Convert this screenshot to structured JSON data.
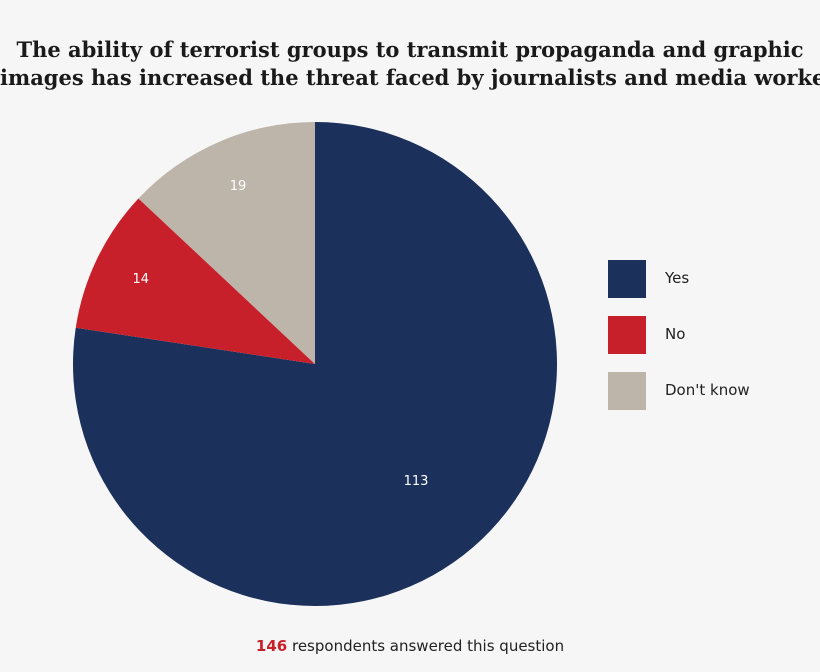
{
  "title_lines": [
    "The ability of terrorist groups to transmit propaganda and graphic",
    "images has increased the threat faced by journalists and media workers."
  ],
  "footer": {
    "count": "146",
    "text": "respondents answered this question"
  },
  "chart_data": {
    "type": "pie",
    "title": "The ability of terrorist groups to transmit propaganda and graphic images has increased the threat faced by journalists and media workers.",
    "slices": [
      {
        "label": "Yes",
        "value": 113,
        "color": "#1b305b"
      },
      {
        "label": "No",
        "value": 14,
        "color": "#c8202a"
      },
      {
        "label": "Don't know",
        "value": 19,
        "color": "#bdb4aa"
      }
    ],
    "legend_position": "right",
    "data_labels": true,
    "total": 146
  }
}
